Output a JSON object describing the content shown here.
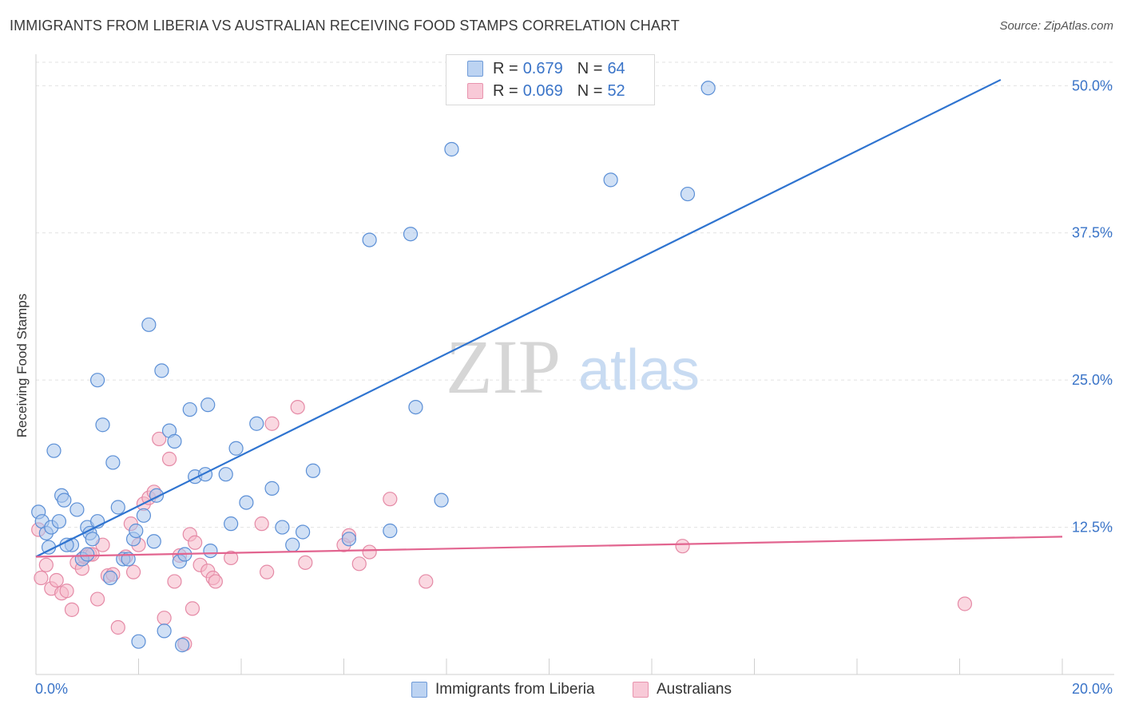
{
  "header": {
    "title": "IMMIGRANTS FROM LIBERIA VS AUSTRALIAN RECEIVING FOOD STAMPS CORRELATION CHART",
    "source": "Source: ZipAtlas.com"
  },
  "watermark": {
    "zip": "ZIP",
    "atlas": "atlas"
  },
  "colors": {
    "blue_fill": "#a9c6ec",
    "blue_stroke": "#5b8fd6",
    "blue_line": "#2f74d0",
    "pink_fill": "#f5b8c9",
    "pink_stroke": "#e58aa6",
    "pink_line": "#e2648f",
    "tick_label": "#3a74c8",
    "grid": "#e2e2e2"
  },
  "legend": {
    "rows": [
      {
        "r_label": "R =",
        "r_value": "0.679",
        "n_label": "N =",
        "n_value": "64"
      },
      {
        "r_label": "R =",
        "r_value": "0.069",
        "n_label": "N =",
        "n_value": "52"
      }
    ],
    "bottom": [
      "Immigrants from Liberia",
      "Australians"
    ]
  },
  "chart_data": {
    "type": "scatter",
    "title": "IMMIGRANTS FROM LIBERIA VS AUSTRALIAN RECEIVING FOOD STAMPS CORRELATION CHART",
    "xlabel": "",
    "ylabel": "Receiving Food Stamps",
    "xlim": [
      0,
      20
    ],
    "ylim": [
      0,
      50
    ],
    "x_tick_labels": [
      "0.0%",
      "20.0%"
    ],
    "y_tick_labels": [
      "12.5%",
      "25.0%",
      "37.5%",
      "50.0%"
    ],
    "y_tick_values": [
      12.5,
      25.0,
      37.5,
      50.0
    ],
    "grid": true,
    "legend_position": "top-center",
    "series": [
      {
        "name": "Immigrants from Liberia",
        "r": 0.679,
        "n": 64,
        "trend": {
          "x": [
            0,
            18.8
          ],
          "y": [
            10.0,
            50.5
          ]
        },
        "points": [
          [
            0.05,
            13.8
          ],
          [
            0.12,
            13.0
          ],
          [
            0.2,
            12.0
          ],
          [
            0.3,
            12.5
          ],
          [
            0.35,
            19.0
          ],
          [
            0.45,
            13.0
          ],
          [
            0.5,
            15.2
          ],
          [
            0.55,
            14.8
          ],
          [
            0.7,
            11.0
          ],
          [
            0.8,
            14.0
          ],
          [
            0.9,
            9.8
          ],
          [
            1.0,
            12.5
          ],
          [
            1.05,
            12.0
          ],
          [
            1.1,
            11.5
          ],
          [
            1.2,
            13.0
          ],
          [
            1.3,
            21.2
          ],
          [
            1.5,
            18.0
          ],
          [
            1.6,
            14.2
          ],
          [
            1.7,
            9.8
          ],
          [
            1.8,
            9.8
          ],
          [
            1.45,
            8.2
          ],
          [
            1.9,
            11.5
          ],
          [
            1.95,
            12.2
          ],
          [
            2.1,
            13.5
          ],
          [
            2.2,
            29.7
          ],
          [
            2.3,
            11.3
          ],
          [
            2.35,
            15.2
          ],
          [
            2.45,
            25.8
          ],
          [
            2.6,
            20.7
          ],
          [
            2.7,
            19.8
          ],
          [
            2.8,
            9.6
          ],
          [
            2.85,
            2.5
          ],
          [
            2.9,
            10.2
          ],
          [
            3.0,
            22.5
          ],
          [
            3.1,
            16.8
          ],
          [
            3.3,
            17.0
          ],
          [
            3.35,
            22.9
          ],
          [
            3.4,
            10.5
          ],
          [
            3.7,
            17.0
          ],
          [
            3.8,
            12.8
          ],
          [
            3.9,
            19.2
          ],
          [
            4.1,
            14.6
          ],
          [
            4.3,
            21.3
          ],
          [
            4.6,
            15.8
          ],
          [
            4.8,
            12.5
          ],
          [
            5.0,
            11.0
          ],
          [
            5.2,
            12.1
          ],
          [
            5.4,
            17.3
          ],
          [
            6.1,
            11.5
          ],
          [
            6.5,
            36.9
          ],
          [
            6.9,
            12.2
          ],
          [
            7.3,
            37.4
          ],
          [
            7.4,
            22.7
          ],
          [
            7.9,
            14.8
          ],
          [
            8.1,
            44.6
          ],
          [
            11.2,
            42.0
          ],
          [
            12.7,
            40.8
          ],
          [
            13.1,
            49.8
          ],
          [
            1.2,
            25.0
          ],
          [
            2.0,
            2.8
          ],
          [
            2.5,
            3.7
          ],
          [
            0.25,
            10.8
          ],
          [
            0.6,
            11.0
          ],
          [
            1.0,
            10.2
          ]
        ]
      },
      {
        "name": "Australians",
        "r": 0.069,
        "n": 52,
        "trend": {
          "x": [
            0,
            20
          ],
          "y": [
            10.0,
            11.7
          ]
        },
        "points": [
          [
            0.05,
            12.3
          ],
          [
            0.1,
            8.2
          ],
          [
            0.2,
            9.3
          ],
          [
            0.3,
            7.3
          ],
          [
            0.4,
            8.0
          ],
          [
            0.5,
            6.9
          ],
          [
            0.6,
            7.1
          ],
          [
            0.7,
            5.5
          ],
          [
            0.8,
            9.5
          ],
          [
            0.9,
            9.0
          ],
          [
            0.95,
            10.0
          ],
          [
            1.05,
            10.2
          ],
          [
            1.1,
            10.2
          ],
          [
            1.2,
            6.4
          ],
          [
            1.3,
            11.0
          ],
          [
            1.4,
            8.4
          ],
          [
            1.5,
            8.5
          ],
          [
            1.6,
            4.0
          ],
          [
            1.75,
            10.0
          ],
          [
            1.85,
            12.8
          ],
          [
            1.9,
            8.7
          ],
          [
            2.0,
            11.0
          ],
          [
            2.1,
            14.5
          ],
          [
            2.2,
            15.0
          ],
          [
            2.3,
            15.5
          ],
          [
            2.4,
            20.0
          ],
          [
            2.5,
            4.8
          ],
          [
            2.6,
            18.3
          ],
          [
            2.7,
            7.9
          ],
          [
            2.8,
            10.1
          ],
          [
            2.9,
            2.6
          ],
          [
            3.0,
            11.9
          ],
          [
            3.05,
            5.6
          ],
          [
            3.1,
            11.2
          ],
          [
            3.2,
            9.3
          ],
          [
            3.35,
            8.8
          ],
          [
            3.45,
            8.2
          ],
          [
            3.5,
            7.9
          ],
          [
            3.8,
            9.9
          ],
          [
            4.4,
            12.8
          ],
          [
            4.5,
            8.7
          ],
          [
            4.6,
            21.3
          ],
          [
            5.1,
            22.7
          ],
          [
            5.25,
            9.5
          ],
          [
            6.0,
            11.0
          ],
          [
            6.1,
            11.8
          ],
          [
            6.3,
            9.4
          ],
          [
            6.5,
            10.4
          ],
          [
            6.9,
            14.9
          ],
          [
            7.6,
            7.9
          ],
          [
            12.6,
            10.9
          ],
          [
            18.1,
            6.0
          ]
        ]
      }
    ]
  }
}
